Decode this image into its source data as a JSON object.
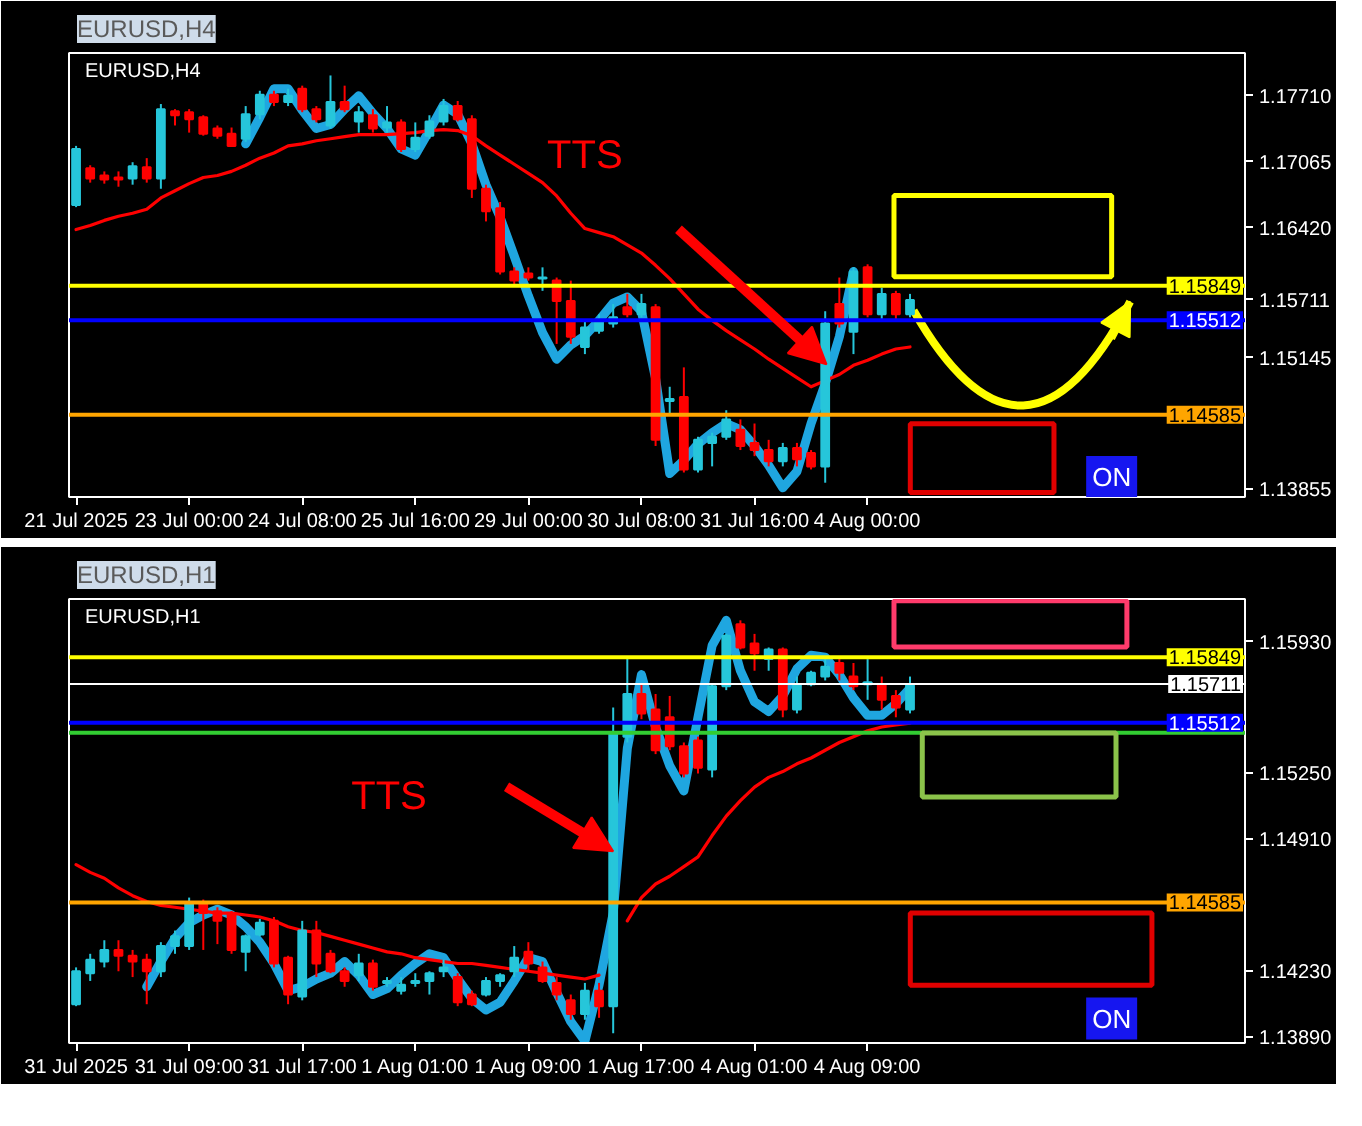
{
  "chart_data": [
    {
      "type": "candlestick",
      "title": "EURUSD,H4",
      "categories": [
        "21 Jul 2025",
        null,
        null,
        null,
        null,
        null,
        null,
        null,
        "23 Jul 00:00",
        null,
        null,
        null,
        null,
        null,
        null,
        null,
        "24 Jul 08:00",
        null,
        null,
        null,
        null,
        null,
        null,
        null,
        "25 Jul 16:00",
        null,
        null,
        null,
        null,
        null,
        null,
        null,
        "29 Jul 00:00",
        null,
        null,
        null,
        null,
        null,
        null,
        null,
        "30 Jul 08:00",
        null,
        null,
        null,
        null,
        null,
        null,
        null,
        "31 Jul 16:00",
        null,
        null,
        null,
        null,
        null,
        null,
        null,
        "4 Aug 00:00",
        null,
        null,
        null,
        null,
        null,
        null,
        null,
        null,
        null,
        null,
        null,
        null,
        null,
        null,
        null,
        null,
        null,
        null,
        null,
        null
      ],
      "ohlc": [
        [
          1.1664,
          1.1722,
          1.1662,
          1.1719
        ],
        [
          1.17,
          1.1703,
          1.1686,
          1.169
        ],
        [
          1.1693,
          1.1697,
          1.1685,
          1.1689
        ],
        [
          1.1691,
          1.1697,
          1.1682,
          1.1689
        ],
        [
          1.169,
          1.1706,
          1.1684,
          1.1702
        ],
        [
          1.1701,
          1.171,
          1.1686,
          1.169
        ],
        [
          1.169,
          1.1763,
          1.168,
          1.1758
        ],
        [
          1.1756,
          1.1758,
          1.1742,
          1.1752
        ],
        [
          1.1755,
          1.1758,
          1.1735,
          1.1748
        ],
        [
          1.175,
          1.1752,
          1.1732,
          1.1734
        ],
        [
          1.1739,
          1.1742,
          1.1729,
          1.1732
        ],
        [
          1.1734,
          1.174,
          1.1721,
          1.1722
        ],
        [
          1.1729,
          1.1761,
          1.1726,
          1.1753
        ],
        [
          1.1753,
          1.1776,
          1.1748,
          1.1772
        ],
        [
          1.1772,
          1.1776,
          1.1761,
          1.1765
        ],
        [
          1.1765,
          1.1778,
          1.1761,
          1.1771
        ],
        [
          1.1778,
          1.1781,
          1.1755,
          1.1758
        ],
        [
          1.1758,
          1.1761,
          1.1745,
          1.1748
        ],
        [
          1.1742,
          1.1791,
          1.1739,
          1.1765
        ],
        [
          1.1765,
          1.1781,
          1.1755,
          1.1758
        ],
        [
          1.1746,
          1.1761,
          1.1735,
          1.1755
        ],
        [
          1.1752,
          1.1758,
          1.1735,
          1.1739
        ],
        [
          1.174,
          1.1761,
          1.1735,
          1.1745
        ],
        [
          1.1745,
          1.1748,
          1.1716,
          1.1719
        ],
        [
          1.1719,
          1.1745,
          1.1716,
          1.173
        ],
        [
          1.1732,
          1.1752,
          1.1729,
          1.1746
        ],
        [
          1.1746,
          1.1768,
          1.1742,
          1.1761
        ],
        [
          1.1761,
          1.1766,
          1.1746,
          1.1748
        ],
        [
          1.1748,
          1.1752,
          1.1671,
          1.168
        ],
        [
          1.168,
          1.1684,
          1.1648,
          1.1658
        ],
        [
          1.1661,
          1.1667,
          1.1596,
          1.1599
        ],
        [
          1.1599,
          1.1603,
          1.1586,
          1.159
        ],
        [
          1.1597,
          1.1603,
          1.159,
          1.1593
        ],
        [
          1.1592,
          1.1603,
          1.158,
          1.1593
        ],
        [
          1.159,
          1.1593,
          1.1528,
          1.157
        ],
        [
          1.157,
          1.159,
          1.1528,
          1.1535
        ],
        [
          1.1525,
          1.1551,
          1.1518,
          1.1544
        ],
        [
          1.1541,
          1.1557,
          1.1538,
          1.1551
        ],
        [
          1.1548,
          1.1567,
          1.1544,
          1.1554
        ],
        [
          1.1564,
          1.1577,
          1.1554,
          1.1557
        ],
        [
          1.1557,
          1.1577,
          1.1554,
          1.1567
        ],
        [
          1.1564,
          1.1567,
          1.1428,
          1.1434
        ],
        [
          1.1472,
          1.1486,
          1.146,
          1.1474
        ],
        [
          1.1476,
          1.1505,
          1.1402,
          1.1405
        ],
        [
          1.1405,
          1.1437,
          1.1402,
          1.1434
        ],
        [
          1.1431,
          1.1441,
          1.1408,
          1.1437
        ],
        [
          1.1437,
          1.1463,
          1.1434,
          1.1454
        ],
        [
          1.1444,
          1.1454,
          1.1424,
          1.1428
        ],
        [
          1.1431,
          1.145,
          1.1418,
          1.1424
        ],
        [
          1.1424,
          1.1434,
          1.1408,
          1.1413
        ],
        [
          1.1413,
          1.1431,
          1.1408,
          1.1426
        ],
        [
          1.1426,
          1.1431,
          1.1408,
          1.1415
        ],
        [
          1.1421,
          1.1424,
          1.1405,
          1.1408
        ],
        [
          1.1408,
          1.156,
          1.1392,
          1.1548
        ],
        [
          1.1567,
          1.1593,
          1.1544,
          1.1548
        ],
        [
          1.154,
          1.1603,
          1.1518,
          1.1599
        ],
        [
          1.1603,
          1.1606,
          1.1554,
          1.1557
        ],
        [
          1.1557,
          1.1583,
          1.1551,
          1.1577
        ],
        [
          1.1577,
          1.158,
          1.1551,
          1.1557
        ],
        [
          1.1557,
          1.1577,
          1.1554,
          1.15711
        ],
        null,
        null,
        null,
        null,
        null,
        null,
        null,
        null,
        null,
        null,
        null,
        null,
        null,
        null,
        null,
        null,
        null
      ],
      "colors": [
        "#26c6da",
        "#ff0000",
        "#ff0000",
        "#ff0000",
        "#26c6da",
        "#ff0000",
        "#26c6da",
        "#ff0000",
        "#ff0000",
        "#ff0000",
        "#ff0000",
        "#ff0000",
        "#26c6da",
        "#26c6da",
        "#ff0000",
        "#26c6da",
        "#ff0000",
        "#ff0000",
        "#26c6da",
        "#ff0000",
        "#26c6da",
        "#ff0000",
        "#26c6da",
        "#ff0000",
        "#26c6da",
        "#26c6da",
        "#26c6da",
        "#ff0000",
        "#ff0000",
        "#ff0000",
        "#ff0000",
        "#ff0000",
        "#ff0000",
        "#26c6da",
        "#ff0000",
        "#ff0000",
        "#26c6da",
        "#26c6da",
        "#26c6da",
        "#ff0000",
        "#26c6da",
        "#ff0000",
        "#26c6da",
        "#ff0000",
        "#26c6da",
        "#26c6da",
        "#26c6da",
        "#ff0000",
        "#ff0000",
        "#ff0000",
        "#26c6da",
        "#ff0000",
        "#ff0000",
        "#26c6da",
        "#ff0000",
        "#26c6da",
        "#ff0000",
        "#26c6da",
        "#ff0000",
        "#26c6da",
        null,
        null,
        null,
        null,
        null,
        null,
        null,
        null,
        null,
        null,
        null,
        null,
        null,
        null,
        null,
        null,
        null
      ],
      "series": [
        {
          "type": "line",
          "color": "#1fa6e0",
          "values": [
            null,
            null,
            null,
            null,
            null,
            null,
            null,
            null,
            null,
            null,
            null,
            null,
            1.1724,
            1.175,
            1.1778,
            1.1778,
            1.1757,
            1.1739,
            1.1743,
            1.1758,
            1.1771,
            1.1754,
            1.1739,
            1.1719,
            1.1713,
            1.1737,
            1.1762,
            1.1753,
            1.1724,
            1.1684,
            1.1652,
            1.1614,
            1.1575,
            1.1539,
            1.1513,
            1.1527,
            1.1536,
            1.1551,
            1.1568,
            1.1574,
            1.156,
            1.1494,
            1.1401,
            1.1414,
            1.143,
            1.1441,
            1.145,
            1.1444,
            1.1428,
            1.1409,
            1.1387,
            1.1403,
            1.145,
            1.1489,
            1.1535,
            1.1599,
            null,
            null,
            null,
            null,
            null,
            null,
            null,
            null,
            null,
            null,
            null,
            null,
            null,
            null,
            null,
            null,
            null,
            null,
            null,
            null,
            null
          ]
        },
        {
          "type": "line",
          "color": "#ff0000",
          "values": [
            1.164,
            1.1644,
            1.1649,
            1.1653,
            1.1656,
            1.166,
            1.1671,
            1.1678,
            1.1685,
            1.1691,
            1.1693,
            1.1697,
            1.1703,
            1.171,
            1.1715,
            1.1722,
            1.1724,
            1.1727,
            1.1729,
            1.1731,
            1.1733,
            1.1733,
            1.1733,
            1.1734,
            1.1735,
            1.1737,
            1.1738,
            1.1737,
            1.1732,
            1.1722,
            1.1713,
            1.1704,
            1.1695,
            1.1686,
            1.1673,
            1.1656,
            1.1641,
            1.1637,
            1.1633,
            1.1625,
            1.1617,
            1.1605,
            1.1592,
            1.1577,
            1.1562,
            1.1551,
            1.1541,
            1.1532,
            1.1523,
            1.1513,
            1.1504,
            1.1495,
            1.1486,
            1.1492,
            1.1498,
            1.1507,
            1.1512,
            1.1518,
            1.1523,
            1.1525,
            null,
            null,
            null,
            null,
            null,
            null,
            null,
            null,
            null,
            null,
            null,
            null,
            null,
            null,
            null,
            null,
            null
          ]
        }
      ],
      "ylim": [
        1.1378,
        1.1813
      ],
      "yticks": [
        {
          "value": 1.1771,
          "label": "1.17710"
        },
        {
          "value": 1.17065,
          "label": "1.17065"
        },
        {
          "value": 1.1642,
          "label": "1.16420"
        },
        {
          "value": 1.15711,
          "label": "1.15711"
        },
        {
          "value": 1.15145,
          "label": "1.15145"
        },
        {
          "value": 1.13855,
          "label": "1.13855"
        }
      ],
      "ref_lines": [
        {
          "axis": "y",
          "value": 1.15849,
          "label": "1.15849",
          "color": "#ffff00"
        },
        {
          "axis": "y",
          "value": 1.15512,
          "label": "1.15512",
          "color": "#0000ff"
        },
        {
          "axis": "y",
          "value": 1.14585,
          "label": "1.14585",
          "color": "#ffa500"
        }
      ],
      "annotations": [
        "TTS",
        "ON"
      ]
    },
    {
      "type": "candlestick",
      "title": "EURUSD,H1",
      "categories": [
        "31 Jul 2025",
        null,
        null,
        null,
        null,
        null,
        null,
        null,
        "31 Jul 09:00",
        null,
        null,
        null,
        null,
        null,
        null,
        null,
        "31 Jul 17:00",
        null,
        null,
        null,
        null,
        null,
        null,
        null,
        "1 Aug 01:00",
        null,
        null,
        null,
        null,
        null,
        null,
        null,
        "1 Aug 09:00",
        null,
        null,
        null,
        null,
        null,
        null,
        null,
        "1 Aug 17:00",
        null,
        null,
        null,
        null,
        null,
        null,
        null,
        "4 Aug 01:00",
        null,
        null,
        null,
        null,
        null,
        null,
        null,
        "4 Aug 09:00",
        null,
        null,
        null,
        null,
        null,
        null,
        null,
        null,
        null,
        null,
        null,
        null,
        null,
        null,
        null,
        null,
        null,
        null,
        null,
        null
      ],
      "ohlc": [
        [
          1.1406,
          1.1425,
          1.1405,
          1.1423
        ],
        [
          1.1422,
          1.1432,
          1.1418,
          1.1429
        ],
        [
          1.1428,
          1.1439,
          1.1425,
          1.1434
        ],
        [
          1.1434,
          1.1439,
          1.1423,
          1.1431
        ],
        [
          1.1431,
          1.1434,
          1.142,
          1.1428
        ],
        [
          1.1429,
          1.1432,
          1.1406,
          1.1423
        ],
        [
          1.1423,
          1.1438,
          1.142,
          1.1436
        ],
        [
          1.1436,
          1.1444,
          1.1432,
          1.1441
        ],
        [
          1.1436,
          1.1461,
          1.1434,
          1.1458
        ],
        [
          1.1458,
          1.146,
          1.1434,
          1.1453
        ],
        [
          1.1454,
          1.1456,
          1.1437,
          1.1449
        ],
        [
          1.1453,
          1.1454,
          1.1432,
          1.1434
        ],
        [
          1.1433,
          1.1442,
          1.1423,
          1.1441
        ],
        [
          1.1442,
          1.145,
          1.1441,
          1.1448
        ],
        [
          1.1449,
          1.1451,
          1.1425,
          1.1427
        ],
        [
          1.143,
          1.1431,
          1.1406,
          1.1411
        ],
        [
          1.141,
          1.1449,
          1.1408,
          1.1444
        ],
        [
          1.1444,
          1.1449,
          1.142,
          1.1427
        ],
        [
          1.1432,
          1.1434,
          1.1422,
          1.1423
        ],
        [
          1.1423,
          1.1425,
          1.1415,
          1.1418
        ],
        [
          1.1421,
          1.1432,
          1.1418,
          1.1427
        ],
        [
          1.1427,
          1.1429,
          1.1413,
          1.1415
        ],
        [
          1.1417,
          1.142,
          1.1415,
          1.1418
        ],
        [
          1.1413,
          1.142,
          1.1411,
          1.1416
        ],
        [
          1.1417,
          1.1422,
          1.1415,
          1.1418
        ],
        [
          1.1418,
          1.1423,
          1.1411,
          1.1422
        ],
        [
          1.1423,
          1.1429,
          1.142,
          1.1425
        ],
        [
          1.142,
          1.1422,
          1.1405,
          1.1407
        ],
        [
          1.1411,
          1.1413,
          1.1405,
          1.1406
        ],
        [
          1.1411,
          1.142,
          1.141,
          1.1418
        ],
        [
          1.1418,
          1.1422,
          1.1415,
          1.1421
        ],
        [
          1.1423,
          1.1436,
          1.142,
          1.143
        ],
        [
          1.1433,
          1.1438,
          1.1423,
          1.1427
        ],
        [
          1.1425,
          1.1428,
          1.1417,
          1.1418
        ],
        [
          1.1417,
          1.142,
          1.1408,
          1.1411
        ],
        [
          1.1408,
          1.1411,
          1.1398,
          1.1401
        ],
        [
          1.1401,
          1.1417,
          1.1398,
          1.1413
        ],
        [
          1.1413,
          1.1417,
          1.1399,
          1.1405
        ],
        [
          1.1405,
          1.1559,
          1.1391,
          1.1546
        ],
        [
          1.1544,
          1.1585,
          1.1541,
          1.1566
        ],
        [
          1.1566,
          1.1571,
          1.1553,
          1.1556
        ],
        [
          1.1558,
          1.1566,
          1.1535,
          1.1537
        ],
        [
          1.1554,
          1.1565,
          1.1537,
          1.1539
        ],
        [
          1.1539,
          1.1541,
          1.1523,
          1.1525
        ],
        [
          1.1542,
          1.1544,
          1.1525,
          1.1528
        ],
        [
          1.1527,
          1.1571,
          1.1523,
          1.157
        ],
        [
          1.157,
          1.1597,
          1.1568,
          1.1596
        ],
        [
          1.1602,
          1.1604,
          1.1589,
          1.159
        ],
        [
          1.1592,
          1.1597,
          1.1578,
          1.1587
        ],
        [
          1.1584,
          1.159,
          1.1578,
          1.1589
        ],
        [
          1.1589,
          1.159,
          1.1554,
          1.1558
        ],
        [
          1.1558,
          1.1575,
          1.1556,
          1.1571
        ],
        [
          1.1571,
          1.1578,
          1.157,
          1.1577
        ],
        [
          1.1575,
          1.1584,
          1.1573,
          1.158
        ],
        [
          1.1582,
          1.1584,
          1.1573,
          1.1577
        ],
        [
          1.1575,
          1.1582,
          1.1568,
          1.157
        ],
        [
          1.1571,
          1.1584,
          1.1563,
          1.1572
        ],
        [
          1.1571,
          1.1575,
          1.1558,
          1.1563
        ],
        [
          1.1565,
          1.1568,
          1.1554,
          1.1559
        ],
        [
          1.1558,
          1.1575,
          1.1556,
          1.15711
        ],
        null,
        null,
        null,
        null,
        null,
        null,
        null,
        null,
        null,
        null,
        null,
        null,
        null,
        null,
        null,
        null,
        null
      ],
      "colors": [
        "#26c6da",
        "#26c6da",
        "#26c6da",
        "#ff0000",
        "#ff0000",
        "#ff0000",
        "#26c6da",
        "#26c6da",
        "#26c6da",
        "#ff0000",
        "#ff0000",
        "#ff0000",
        "#26c6da",
        "#26c6da",
        "#ff0000",
        "#ff0000",
        "#26c6da",
        "#ff0000",
        "#ff0000",
        "#ff0000",
        "#26c6da",
        "#ff0000",
        "#26c6da",
        "#26c6da",
        "#26c6da",
        "#26c6da",
        "#26c6da",
        "#ff0000",
        "#ff0000",
        "#26c6da",
        "#26c6da",
        "#26c6da",
        "#ff0000",
        "#ff0000",
        "#ff0000",
        "#ff0000",
        "#26c6da",
        "#ff0000",
        "#26c6da",
        "#26c6da",
        "#ff0000",
        "#ff0000",
        "#ff0000",
        "#ff0000",
        "#ff0000",
        "#26c6da",
        "#26c6da",
        "#ff0000",
        "#ff0000",
        "#26c6da",
        "#ff0000",
        "#26c6da",
        "#26c6da",
        "#26c6da",
        "#ff0000",
        "#ff0000",
        "#26c6da",
        "#ff0000",
        "#ff0000",
        "#26c6da",
        null,
        null,
        null,
        null,
        null,
        null,
        null,
        null,
        null,
        null,
        null,
        null,
        null,
        null,
        null,
        null,
        null
      ],
      "series": [
        {
          "type": "line",
          "color": "#1fa6e0",
          "values": [
            null,
            null,
            null,
            null,
            null,
            1.1415,
            1.1428,
            1.144,
            1.1448,
            1.1452,
            1.1455,
            1.1452,
            1.1446,
            1.1438,
            1.1427,
            1.1413,
            1.1415,
            1.1419,
            1.1422,
            1.1428,
            1.1421,
            1.1411,
            1.1414,
            1.1421,
            1.1427,
            1.1432,
            1.143,
            1.1419,
            1.1409,
            1.1403,
            1.1407,
            1.1418,
            1.143,
            1.1428,
            1.1412,
            1.1397,
            1.1387,
            1.1416,
            1.1453,
            1.1538,
            1.1576,
            1.1549,
            1.1529,
            1.1516,
            1.1554,
            1.1591,
            1.1604,
            1.1578,
            1.1562,
            1.1557,
            1.1565,
            1.1579,
            1.1586,
            1.1585,
            1.1576,
            1.1564,
            1.1555,
            1.1555,
            1.1561,
            1.1569,
            null,
            null,
            null,
            null,
            null,
            null,
            null,
            null,
            null,
            null,
            null,
            null,
            null,
            null,
            null,
            null,
            null
          ]
        },
        {
          "type": "line",
          "color": "#ff0000",
          "values": [
            1.1478,
            1.1474,
            1.1471,
            1.1466,
            1.1462,
            1.1459,
            1.1457,
            1.1456,
            1.1455,
            1.1454,
            1.1453,
            1.1453,
            1.1452,
            1.1451,
            1.1449,
            1.1446,
            1.1444,
            1.1443,
            1.1441,
            1.1439,
            1.1437,
            1.1435,
            1.1433,
            1.1432,
            1.143,
            1.1429,
            1.1428,
            1.1427,
            1.1427,
            1.1426,
            1.1425,
            1.1424,
            1.1423,
            1.1422,
            1.1421,
            1.142,
            1.1419,
            1.1421,
            null,
            1.1449,
            1.1461,
            1.1468,
            1.1472,
            1.1477,
            1.1482,
            1.1493,
            1.1503,
            1.1511,
            1.1518,
            1.1523,
            1.1526,
            1.153,
            1.1533,
            1.1537,
            1.1541,
            1.1544,
            1.1547,
            1.1549,
            1.155,
            1.1551,
            null,
            null,
            null,
            null,
            null,
            null,
            null,
            null,
            null,
            null,
            null,
            null,
            null,
            null,
            null,
            null,
            null
          ]
        }
      ],
      "ylim": [
        1.1386,
        1.1615
      ],
      "yticks": [
        {
          "value": 1.1593,
          "label": "1.15930"
        },
        {
          "value": 1.1525,
          "label": "1.15250"
        },
        {
          "value": 1.1491,
          "label": "1.14910"
        },
        {
          "value": 1.1423,
          "label": "1.14230"
        },
        {
          "value": 1.1389,
          "label": "1.13890"
        }
      ],
      "ref_lines": [
        {
          "axis": "y",
          "value": 1.15849,
          "label": "1.15849",
          "color": "#ffff00"
        },
        {
          "axis": "y",
          "value": 1.15711,
          "label": "1.15711",
          "color": "#ffffff"
        },
        {
          "axis": "y",
          "value": 1.15512,
          "label": "1.15512",
          "color": "#0000ff"
        },
        {
          "axis": "y",
          "value": 1.1546,
          "color": "#32cd32"
        },
        {
          "axis": "y",
          "value": 1.14585,
          "label": "1.14585",
          "color": "#ffa500"
        }
      ],
      "annotations": [
        "TTS",
        "ON"
      ]
    }
  ]
}
